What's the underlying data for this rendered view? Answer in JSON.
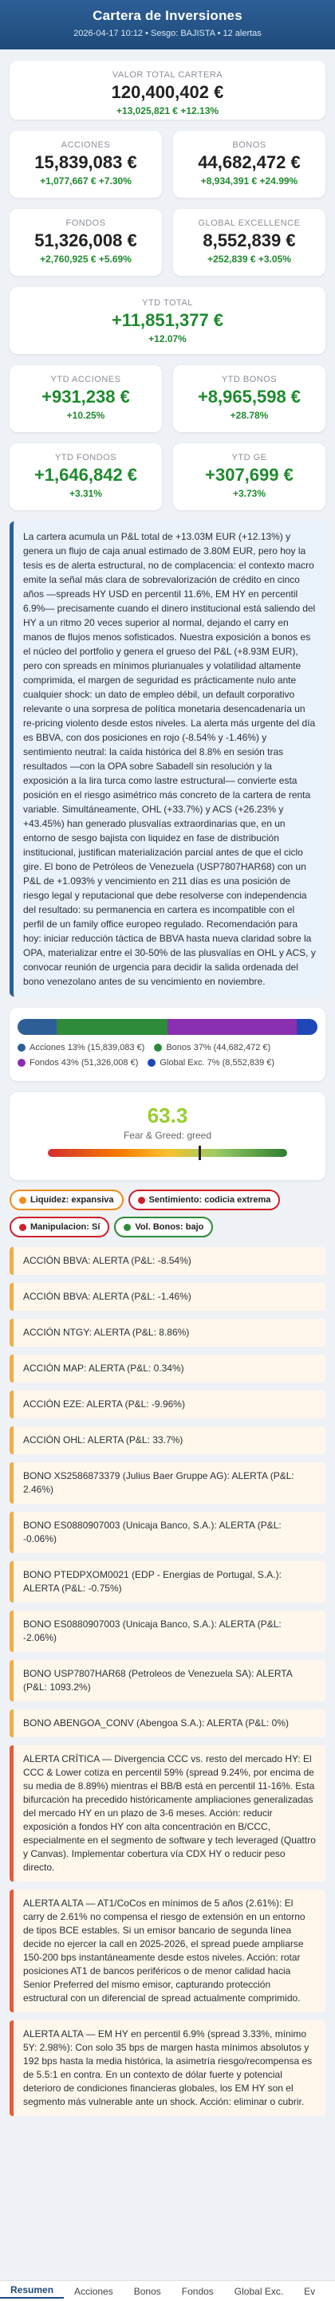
{
  "header": {
    "title": "Cartera de Inversiones",
    "subtitle": "2026-04-17 10:12 • Sesgo: BAJISTA • 12 alertas"
  },
  "total": {
    "label": "VALOR TOTAL CARTERA",
    "value": "120,400,402 €",
    "change": "+13,025,821 € +12.13%"
  },
  "segments": [
    {
      "label": "ACCIONES",
      "value": "15,839,083 €",
      "change": "+1,077,667 € +7.30%"
    },
    {
      "label": "BONOS",
      "value": "44,682,472 €",
      "change": "+8,934,391 € +24.99%"
    },
    {
      "label": "FONDOS",
      "value": "51,326,008 €",
      "change": "+2,760,925 € +5.69%"
    },
    {
      "label": "GLOBAL EXCELLENCE",
      "value": "8,552,839 €",
      "change": "+252,839 € +3.05%"
    }
  ],
  "ytd_total": {
    "label": "YTD TOTAL",
    "value": "+11,851,377 €",
    "pct": "+12.07%"
  },
  "ytd": [
    {
      "label": "YTD ACCIONES",
      "value": "+931,238 €",
      "pct": "+10.25%"
    },
    {
      "label": "YTD BONOS",
      "value": "+8,965,598 €",
      "pct": "+28.78%"
    },
    {
      "label": "YTD FONDOS",
      "value": "+1,646,842 €",
      "pct": "+3.31%"
    },
    {
      "label": "YTD GE",
      "value": "+307,699 €",
      "pct": "+3.73%"
    }
  ],
  "analysis": "La cartera acumula un P&L total de +13.03M EUR (+12.13%) y genera un flujo de caja anual estimado de 3.80M EUR, pero hoy la tesis es de alerta estructural, no de complacencia: el contexto macro emite la señal más clara de sobrevalorización de crédito en cinco años —spreads HY USD en percentil 11.6%, EM HY en percentil 6.9%— precisamente cuando el dinero institucional está saliendo del HY a un ritmo 20 veces superior al normal, dejando el carry en manos de flujos menos sofisticados. Nuestra exposición a bonos es el núcleo del portfolio y genera el grueso del P&L (+8.93M EUR), pero con spreads en mínimos plurianuales y volatilidad altamente comprimida, el margen de seguridad es prácticamente nulo ante cualquier shock: un dato de empleo débil, un default corporativo relevante o una sorpresa de política monetaria desencadenaría un re-pricing violento desde estos niveles. La alerta más urgente del día es BBVA, con dos posiciones en rojo (-8.54% y -1.46%) y sentimiento neutral: la caída histórica del 8.8% en sesión tras resultados —con la OPA sobre Sabadell sin resolución y la exposición a la lira turca como lastre estructural— convierte esta posición en el riesgo asimétrico más concreto de la cartera de renta variable. Simultáneamente, OHL (+33.7%) y ACS (+26.23% y +43.45%) han generado plusvalías extraordinarias que, en un entorno de sesgo bajista con liquidez en fase de distribución institucional, justifican materialización parcial antes de que el ciclo gire. El bono de Petróleos de Venezuela (USP7807HAR68) con un P&L de +1.093% y vencimiento en 211 días es una posición de riesgo legal y reputacional que debe resolverse con independencia del resultado: su permanencia en cartera es incompatible con el perfil de un family office europeo regulado. Recomendación para hoy: iniciar reducción táctica de BBVA hasta nueva claridad sobre la OPA, materializar entre el 30-50% de las plusvalías en OHL y ACS, y convocar reunión de urgencia para decidir la salida ordenada del bono venezolano antes de su vencimiento en noviembre.",
  "allocation": {
    "items": [
      {
        "label": "Acciones 13% (15,839,083 €)",
        "pct": 13,
        "color": "#2d5f96"
      },
      {
        "label": "Bonos 37% (44,682,472 €)",
        "pct": 37,
        "color": "#2e8b3a"
      },
      {
        "label": "Fondos 43% (51,326,008 €)",
        "pct": 43,
        "color": "#8a2fb0"
      },
      {
        "label": "Global Exc. 7% (8,552,839 €)",
        "pct": 7,
        "color": "#1f47b8"
      }
    ]
  },
  "fear_greed": {
    "value": "63.3",
    "level": 63.3,
    "label": "Fear & Greed: greed",
    "color": "#9acd32"
  },
  "tags": [
    {
      "label": "Liquidez: expansiva",
      "color": "#f08c1a",
      "border": "#f08c1a"
    },
    {
      "label": "Sentimiento: codicia extrema",
      "color": "#d0202a",
      "border": "#d0202a"
    },
    {
      "label": "Manipulacion: Sí",
      "color": "#d0202a",
      "border": "#d0202a"
    },
    {
      "label": "Vol. Bonos: bajo",
      "color": "#2e8b3a",
      "border": "#2e8b3a"
    }
  ],
  "alerts": [
    {
      "text": "ACCIÓN BBVA: ALERTA (P&L: -8.54%)",
      "level": "orange"
    },
    {
      "text": "ACCIÓN BBVA: ALERTA (P&L: -1.46%)",
      "level": "orange"
    },
    {
      "text": "ACCIÓN NTGY: ALERTA (P&L: 8.86%)",
      "level": "orange"
    },
    {
      "text": "ACCIÓN MAP: ALERTA (P&L: 0.34%)",
      "level": "orange"
    },
    {
      "text": "ACCIÓN EZE: ALERTA (P&L: -9.96%)",
      "level": "orange"
    },
    {
      "text": "ACCIÓN OHL: ALERTA (P&L: 33.7%)",
      "level": "orange"
    },
    {
      "text": "BONO XS2586873379 (Julius Baer Gruppe AG): ALERTA (P&L: 2.46%)",
      "level": "orange"
    },
    {
      "text": "BONO ES0880907003 (Unicaja Banco, S.A.): ALERTA (P&L: -0.06%)",
      "level": "orange"
    },
    {
      "text": "BONO PTEDPXOM0021 (EDP - Energias de Portugal, S.A.): ALERTA (P&L: -0.75%)",
      "level": "orange"
    },
    {
      "text": "BONO ES0880907003 (Unicaja Banco, S.A.): ALERTA (P&L: -2.06%)",
      "level": "orange"
    },
    {
      "text": "BONO USP7807HAR68 (Petroleos de Venezuela SA): ALERTA (P&L: 1093.2%)",
      "level": "orange"
    },
    {
      "text": "BONO ABENGOA_CONV (Abengoa S.A.): ALERTA (P&L: 0%)",
      "level": "orange"
    },
    {
      "text": "ALERTA CRÍTICA — Divergencia CCC vs. resto del mercado HY: El CCC & Lower cotiza en percentil 59% (spread 9.24%, por encima de su media de 8.89%) mientras el BB/B está en percentil 11-16%. Esta bifurcación ha precedido históricamente ampliaciones generalizadas del mercado HY en un plazo de 3-6 meses. Acción: reducir exposición a fondos HY con alta concentración en B/CCC, especialmente en el segmento de software y tech leveraged (Quattro y Canvas). Implementar cobertura vía CDX HY o reducir peso directo.",
      "level": "red"
    },
    {
      "text": "ALERTA ALTA — AT1/CoCos en mínimos de 5 años (2.61%): El carry de 2.61% no compensa el riesgo de extensión en un entorno de tipos BCE estables. Si un emisor bancario de segunda línea decide no ejercer la call en 2025-2026, el spread puede ampliarse 150-200 bps instantáneamente desde estos niveles. Acción: rotar posiciones AT1 de bancos periféricos o de menor calidad hacia Senior Preferred del mismo emisor, capturando protección estructural con un diferencial de spread actualmente comprimido.",
      "level": "red"
    },
    {
      "text": "ALERTA ALTA — EM HY en percentil 6.9% (spread 3.33%, mínimo 5Y: 2.98%): Con solo 35 bps de margen hasta mínimos absolutos y 192 bps hasta la media histórica, la asimetría riesgo/recompensa es de 5.5:1 en contra. En un contexto de dólar fuerte y potencial deterioro de condiciones financieras globales, los EM HY son el segmento más vulnerable ante un shock. Acción: eliminar o cubrir.",
      "level": "red"
    }
  ],
  "nav": [
    {
      "label": "Resumen",
      "active": true
    },
    {
      "label": "Acciones",
      "active": false
    },
    {
      "label": "Bonos",
      "active": false
    },
    {
      "label": "Fondos",
      "active": false
    },
    {
      "label": "Global Exc.",
      "active": false
    },
    {
      "label": "Ev",
      "active": false
    }
  ]
}
